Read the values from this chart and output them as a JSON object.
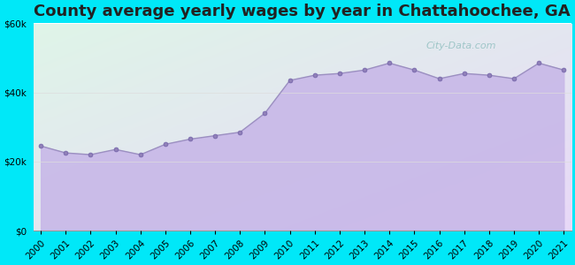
{
  "title": "County average yearly wages by year in Chattahoochee, GA",
  "years": [
    2000,
    2001,
    2002,
    2003,
    2004,
    2005,
    2006,
    2007,
    2008,
    2009,
    2010,
    2011,
    2012,
    2013,
    2014,
    2015,
    2016,
    2017,
    2018,
    2019,
    2020,
    2021
  ],
  "wages": [
    24500,
    22500,
    22000,
    23500,
    22000,
    25000,
    26500,
    27500,
    28500,
    34000,
    43500,
    45000,
    45500,
    46500,
    48500,
    46500,
    44000,
    45500,
    45000,
    44000,
    48500,
    46500
  ],
  "line_color": "#9b8fc0",
  "fill_color": "#c8b8e8",
  "marker_face_color": "#9080b8",
  "marker_edge_color": "#7060a8",
  "marker_size": 3.5,
  "ylim": [
    0,
    60000
  ],
  "yticks": [
    0,
    20000,
    40000,
    60000
  ],
  "background_outer": "#00e8f8",
  "background_grad_top_left": "#dff5e8",
  "background_grad_bottom_right": "#e8d8f8",
  "grid_color": "#dddddd",
  "title_fontsize": 13,
  "tick_fontsize": 7.5,
  "watermark_text": "City-Data.com"
}
